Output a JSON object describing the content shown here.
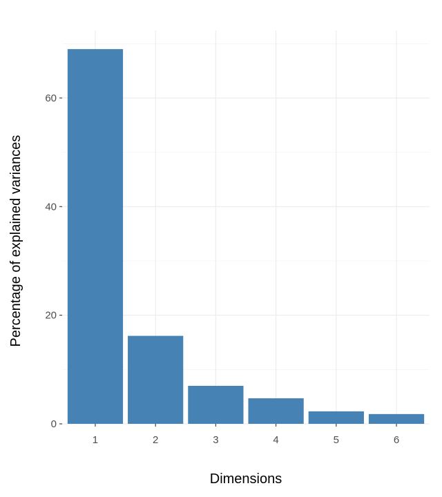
{
  "chart_data": {
    "type": "bar",
    "title": "",
    "xlabel": "Dimensions",
    "ylabel": "Percentage of explained variances",
    "categories": [
      "1",
      "2",
      "3",
      "4",
      "5",
      "6"
    ],
    "values": [
      69.0,
      16.2,
      7.0,
      4.7,
      2.3,
      1.8
    ],
    "ylim": [
      0,
      72.45
    ],
    "yticks": [
      0,
      20,
      40,
      60
    ],
    "grid": true,
    "legend": "none",
    "colors": {
      "bar": "#4682B4"
    }
  }
}
